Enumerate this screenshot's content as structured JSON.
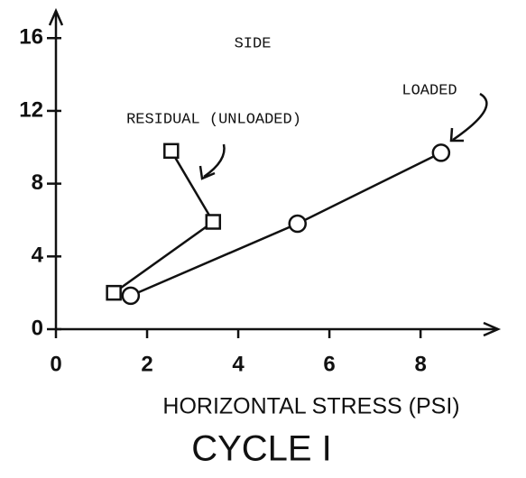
{
  "chart_data": {
    "type": "line",
    "title": "CYCLE I",
    "subtitle": "SIDE",
    "x_label": "HORIZONTAL STRESS (PSI)",
    "xlim": [
      0,
      9.7
    ],
    "ylim": [
      0,
      17.5
    ],
    "xticks": [
      0,
      2,
      4,
      6,
      8
    ],
    "yticks": [
      0,
      4,
      8,
      12,
      16
    ],
    "series": [
      {
        "name": "LOADED",
        "color": "#111111",
        "marker": "circle",
        "x": [
          1.64,
          5.3,
          8.45
        ],
        "values": [
          1.84,
          5.8,
          9.7
        ]
      },
      {
        "name": "RESIDUAL (UNLOADED)",
        "color": "#111111",
        "marker": "square",
        "x": [
          1.27,
          3.45,
          2.53
        ],
        "values": [
          2.0,
          5.9,
          9.8
        ]
      }
    ]
  }
}
